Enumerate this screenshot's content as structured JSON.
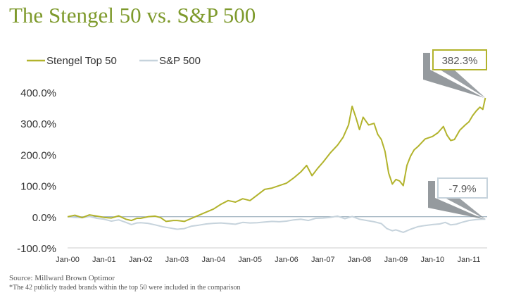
{
  "title": "The Stengel 50 vs. S&P 500",
  "source": "Source: Millward Brown Optimor",
  "footnote": "*The 42 publicly traded brands within the top 50 were included in the comparison",
  "colors": {
    "title": "#7e9a2c",
    "stengel": "#b2b32c",
    "sp500": "#c6d3dc",
    "callout_border": "#b2b32c",
    "callout_arrow": "#8a8f94"
  },
  "chart_data": {
    "type": "line",
    "title": "The Stengel 50 vs. S&P 500",
    "xlabel": "",
    "ylabel": "",
    "x_ticks": [
      "Jan-00",
      "Jan-01",
      "Jan-02",
      "Jan-03",
      "Jan-04",
      "Jan-05",
      "Jan-06",
      "Jan-07",
      "Jan-08",
      "Jan-09",
      "Jan-10",
      "Jan-11"
    ],
    "y_ticks": [
      "400.0%",
      "300.0%",
      "200.0%",
      "100.0%",
      "0.0%",
      "-100.0%"
    ],
    "ylim": [
      -100,
      400
    ],
    "xlim": [
      2000,
      2011.5
    ],
    "legend_position": "top-left",
    "grid": false,
    "zero_line": true,
    "series": [
      {
        "name": "Stengel Top 50",
        "points": [
          [
            2000.0,
            0
          ],
          [
            2000.2,
            5
          ],
          [
            2000.4,
            -3
          ],
          [
            2000.6,
            6
          ],
          [
            2000.8,
            2
          ],
          [
            2001.0,
            -2
          ],
          [
            2001.2,
            -4
          ],
          [
            2001.4,
            3
          ],
          [
            2001.6,
            -8
          ],
          [
            2001.75,
            -12
          ],
          [
            2001.9,
            -5
          ],
          [
            2002.0,
            -5
          ],
          [
            2002.2,
            0
          ],
          [
            2002.4,
            2
          ],
          [
            2002.55,
            -3
          ],
          [
            2002.7,
            -15
          ],
          [
            2002.9,
            -12
          ],
          [
            2003.0,
            -12
          ],
          [
            2003.2,
            -15
          ],
          [
            2003.4,
            -5
          ],
          [
            2003.6,
            5
          ],
          [
            2003.8,
            15
          ],
          [
            2004.0,
            25
          ],
          [
            2004.2,
            40
          ],
          [
            2004.4,
            52
          ],
          [
            2004.6,
            47
          ],
          [
            2004.8,
            58
          ],
          [
            2005.0,
            52
          ],
          [
            2005.2,
            70
          ],
          [
            2005.4,
            88
          ],
          [
            2005.6,
            92
          ],
          [
            2005.8,
            100
          ],
          [
            2006.0,
            108
          ],
          [
            2006.2,
            125
          ],
          [
            2006.4,
            145
          ],
          [
            2006.55,
            165
          ],
          [
            2006.7,
            132
          ],
          [
            2006.85,
            155
          ],
          [
            2007.0,
            175
          ],
          [
            2007.2,
            205
          ],
          [
            2007.4,
            230
          ],
          [
            2007.55,
            255
          ],
          [
            2007.7,
            295
          ],
          [
            2007.8,
            355
          ],
          [
            2007.9,
            320
          ],
          [
            2008.0,
            280
          ],
          [
            2008.1,
            320
          ],
          [
            2008.25,
            295
          ],
          [
            2008.4,
            300
          ],
          [
            2008.5,
            265
          ],
          [
            2008.6,
            248
          ],
          [
            2008.7,
            210
          ],
          [
            2008.8,
            140
          ],
          [
            2008.9,
            105
          ],
          [
            2009.0,
            120
          ],
          [
            2009.1,
            115
          ],
          [
            2009.2,
            100
          ],
          [
            2009.3,
            165
          ],
          [
            2009.4,
            195
          ],
          [
            2009.5,
            215
          ],
          [
            2009.6,
            225
          ],
          [
            2009.8,
            250
          ],
          [
            2010.0,
            258
          ],
          [
            2010.15,
            270
          ],
          [
            2010.3,
            290
          ],
          [
            2010.4,
            262
          ],
          [
            2010.5,
            245
          ],
          [
            2010.6,
            248
          ],
          [
            2010.75,
            278
          ],
          [
            2010.9,
            295
          ],
          [
            2011.0,
            305
          ],
          [
            2011.1,
            325
          ],
          [
            2011.2,
            340
          ],
          [
            2011.3,
            352
          ],
          [
            2011.38,
            345
          ],
          [
            2011.45,
            382
          ]
        ]
      },
      {
        "name": "S&P 500",
        "points": [
          [
            2000.0,
            0
          ],
          [
            2000.2,
            -2
          ],
          [
            2000.4,
            -3
          ],
          [
            2000.6,
            1
          ],
          [
            2000.8,
            -5
          ],
          [
            2001.0,
            -8
          ],
          [
            2001.2,
            -14
          ],
          [
            2001.4,
            -10
          ],
          [
            2001.6,
            -18
          ],
          [
            2001.75,
            -25
          ],
          [
            2001.9,
            -20
          ],
          [
            2002.0,
            -19
          ],
          [
            2002.2,
            -21
          ],
          [
            2002.4,
            -26
          ],
          [
            2002.6,
            -32
          ],
          [
            2002.8,
            -36
          ],
          [
            2003.0,
            -40
          ],
          [
            2003.2,
            -38
          ],
          [
            2003.4,
            -30
          ],
          [
            2003.6,
            -27
          ],
          [
            2003.8,
            -23
          ],
          [
            2004.0,
            -21
          ],
          [
            2004.2,
            -20
          ],
          [
            2004.4,
            -22
          ],
          [
            2004.6,
            -24
          ],
          [
            2004.8,
            -18
          ],
          [
            2005.0,
            -20
          ],
          [
            2005.2,
            -19
          ],
          [
            2005.4,
            -17
          ],
          [
            2005.6,
            -15
          ],
          [
            2005.8,
            -16
          ],
          [
            2006.0,
            -14
          ],
          [
            2006.2,
            -10
          ],
          [
            2006.4,
            -8
          ],
          [
            2006.6,
            -12
          ],
          [
            2006.8,
            -5
          ],
          [
            2007.0,
            -4
          ],
          [
            2007.2,
            -2
          ],
          [
            2007.4,
            2
          ],
          [
            2007.6,
            -6
          ],
          [
            2007.8,
            1
          ],
          [
            2008.0,
            -8
          ],
          [
            2008.2,
            -12
          ],
          [
            2008.4,
            -16
          ],
          [
            2008.6,
            -22
          ],
          [
            2008.75,
            -38
          ],
          [
            2008.9,
            -45
          ],
          [
            2009.0,
            -42
          ],
          [
            2009.2,
            -50
          ],
          [
            2009.4,
            -40
          ],
          [
            2009.6,
            -32
          ],
          [
            2009.8,
            -28
          ],
          [
            2010.0,
            -25
          ],
          [
            2010.2,
            -23
          ],
          [
            2010.35,
            -18
          ],
          [
            2010.5,
            -26
          ],
          [
            2010.65,
            -24
          ],
          [
            2010.8,
            -18
          ],
          [
            2011.0,
            -12
          ],
          [
            2011.2,
            -9
          ],
          [
            2011.35,
            -8
          ],
          [
            2011.45,
            -7.9
          ]
        ]
      }
    ],
    "annotations": [
      {
        "text": "382.3%",
        "series": "Stengel Top 50",
        "value": 382.3,
        "x": 2011.45
      },
      {
        "text": "-7.9%",
        "series": "S&P 500",
        "value": -7.9,
        "x": 2011.45
      }
    ]
  }
}
